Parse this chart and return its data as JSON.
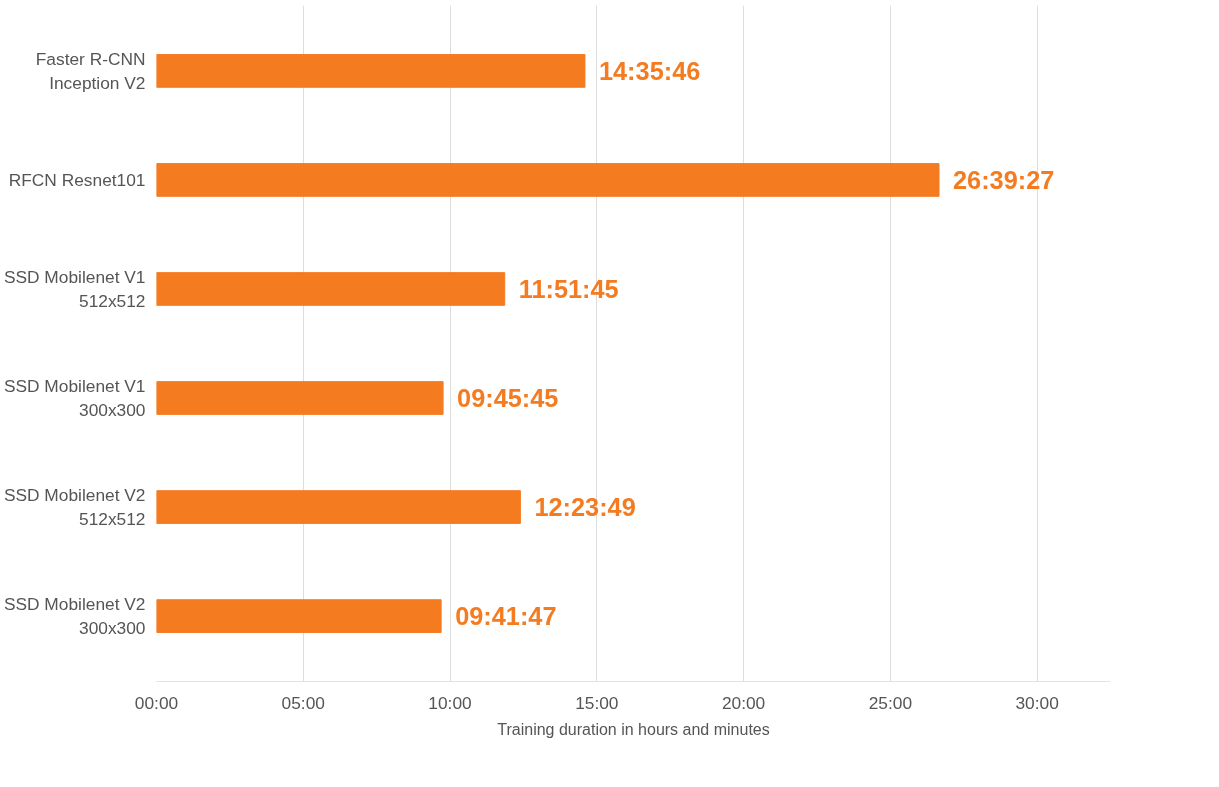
{
  "chart_data": {
    "type": "bar",
    "orientation": "horizontal",
    "xlabel": "Training duration in hours and minutes",
    "categories": [
      "Faster R-CNN\nInception V2",
      "RFCN Resnet101",
      "SSD Mobilenet V1\n512x512",
      "SSD Mobilenet V1\n300x300",
      "SSD Mobilenet V2\n512x512",
      "SSD Mobilenet V2\n300x300"
    ],
    "values": [
      14.5961,
      26.6575,
      11.8625,
      9.7625,
      12.3969,
      9.6964
    ],
    "value_labels": [
      "14:35:46",
      "26:39:27",
      "11:51:45",
      "09:45:45",
      "12:23:49",
      "09:41:47"
    ],
    "color": "#f47b20",
    "xlim": [
      0,
      32.5
    ],
    "xticks": [
      {
        "value": 0,
        "label": "00:00"
      },
      {
        "value": 5,
        "label": "05:00"
      },
      {
        "value": 10,
        "label": "10:00"
      },
      {
        "value": 15,
        "label": "15:00"
      },
      {
        "value": 20,
        "label": "20:00"
      },
      {
        "value": 25,
        "label": "25:00"
      },
      {
        "value": 30,
        "label": "30:00"
      }
    ],
    "grid": "x"
  }
}
